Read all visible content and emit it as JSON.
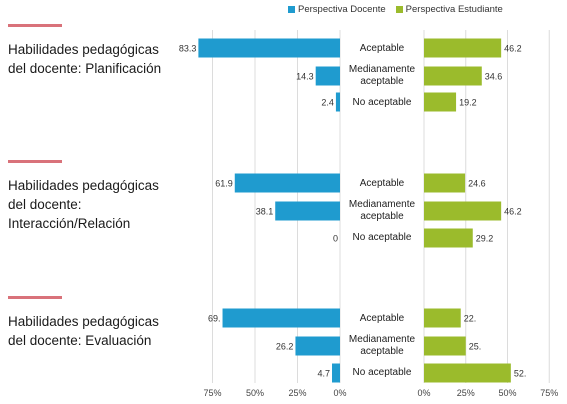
{
  "chart_data": {
    "type": "bar",
    "orientation": "horizontal",
    "layout": "butterfly",
    "legend": {
      "position": "top",
      "entries": [
        "Perspectiva Docente",
        "Perspectiva Estudiante"
      ]
    },
    "series": [
      {
        "name": "Perspectiva Docente",
        "color": "#1f9bcf"
      },
      {
        "name": "Perspectiva Estudiante",
        "color": "#9bbb2c"
      }
    ],
    "sections": [
      {
        "label": "Habilidades pedagógicas del docente: Planificación",
        "categories": [
          "Aceptable",
          "Medianamente aceptable",
          "No aceptable"
        ],
        "docente": [
          83.3,
          14.3,
          2.4
        ],
        "docente_labels": [
          "83.3",
          "14.3",
          "2.4"
        ],
        "estudiante": [
          46.2,
          34.6,
          19.2
        ],
        "estudiante_labels": [
          "46.2",
          "34.6",
          "19.2"
        ]
      },
      {
        "label": "Habilidades pedagógicas del docente: Interacción/Relación",
        "categories": [
          "Aceptable",
          "Medianamente aceptable",
          "No aceptable"
        ],
        "docente": [
          61.9,
          38.1,
          0
        ],
        "docente_labels": [
          "61.9",
          "38.1",
          "0"
        ],
        "estudiante": [
          24.6,
          46.2,
          29.2
        ],
        "estudiante_labels": [
          "24.6",
          "46.2",
          "29.2"
        ]
      },
      {
        "label": "Habilidades pedagógicas del docente: Evaluación",
        "categories": [
          "Aceptable",
          "Medianamente aceptable",
          "No aceptable"
        ],
        "docente": [
          69.1,
          26.2,
          4.7
        ],
        "docente_labels": [
          "69.",
          "26.2",
          "4.7"
        ],
        "estudiante": [
          22,
          25,
          52
        ],
        "estudiante_labels": [
          "22.",
          "25.",
          "52."
        ]
      }
    ],
    "docente_axis": {
      "ticks": [
        "75%",
        "50%",
        "25%",
        "0%"
      ],
      "range": [
        0,
        100
      ]
    },
    "estudiante_axis": {
      "ticks": [
        "0%",
        "25%",
        "50%",
        "75%"
      ],
      "range": [
        0,
        75
      ]
    },
    "grid": true
  }
}
